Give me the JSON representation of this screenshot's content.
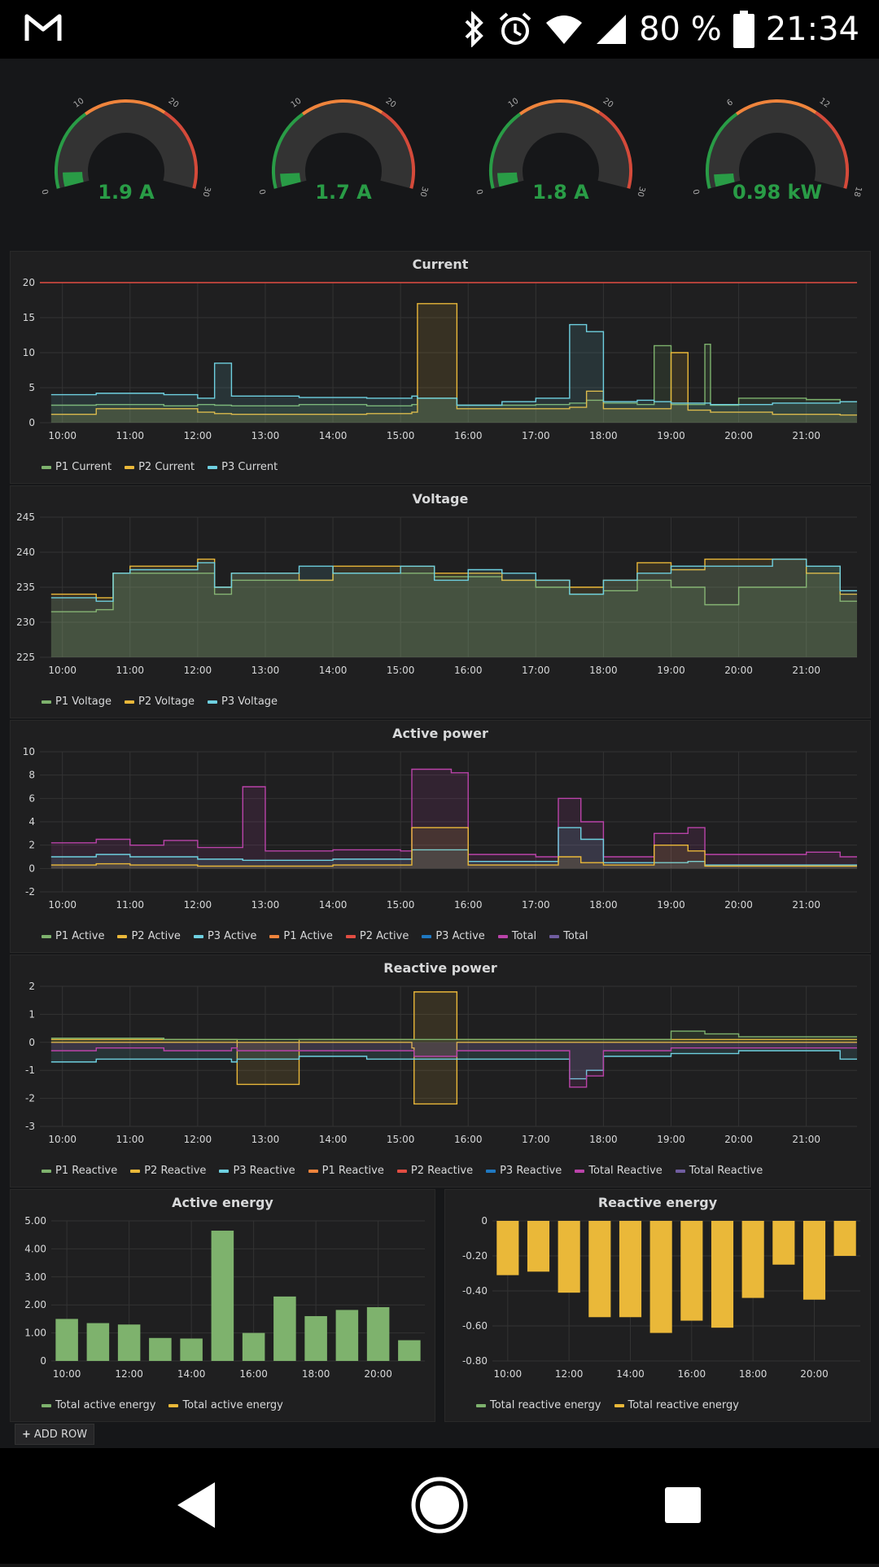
{
  "status_bar": {
    "battery_percent": "80 %",
    "time": "21:34",
    "icons": [
      "gmail-icon",
      "bluetooth-icon",
      "alarm-icon",
      "wifi-icon",
      "signal-icon",
      "battery-icon"
    ]
  },
  "gauges": [
    {
      "value": "1.9 A",
      "ticks": [
        "0",
        "10",
        "20",
        "30"
      ],
      "level": 0.063
    },
    {
      "value": "1.7 A",
      "ticks": [
        "0",
        "10",
        "20",
        "30"
      ],
      "level": 0.057
    },
    {
      "value": "1.8 A",
      "ticks": [
        "0",
        "10",
        "20",
        "30"
      ],
      "level": 0.06
    },
    {
      "value": "0.98 kW",
      "ticks": [
        "0",
        "6",
        "12",
        "18"
      ],
      "level": 0.054
    }
  ],
  "x_ticks": [
    "10:00",
    "11:00",
    "12:00",
    "13:00",
    "14:00",
    "15:00",
    "16:00",
    "17:00",
    "18:00",
    "19:00",
    "20:00",
    "21:00"
  ],
  "colors": {
    "green": "#7eb26d",
    "yellow": "#eab839",
    "cyan": "#6ed0e0",
    "orange": "#ef843c",
    "red": "#e24d42",
    "blue": "#1f78c1",
    "pink": "#ba43a9",
    "purple": "#705da0",
    "gauge_green": "#299c46"
  },
  "panels": {
    "current": {
      "title": "Current",
      "legend": [
        {
          "label": "P1 Current",
          "color": "#7eb26d"
        },
        {
          "label": "P2 Current",
          "color": "#eab839"
        },
        {
          "label": "P3 Current",
          "color": "#6ed0e0"
        }
      ],
      "chart_data": {
        "type": "line",
        "title": "Current",
        "ylim": [
          0,
          20
        ],
        "yticks": [
          "0",
          "5",
          "10",
          "15",
          "20"
        ],
        "threshold": 20,
        "x": [
          "9:50",
          "10:30",
          "11:30",
          "12:00",
          "12:15",
          "12:30",
          "13:30",
          "14:30",
          "15:10",
          "15:15",
          "15:45",
          "15:50",
          "16:30",
          "17:00",
          "17:30",
          "17:45",
          "18:00",
          "18:30",
          "18:45",
          "19:00",
          "19:15",
          "19:30",
          "19:35",
          "20:00",
          "20:30",
          "21:00",
          "21:30"
        ],
        "series": [
          {
            "name": "P1 Current",
            "values": [
              2.5,
              2.6,
              2.4,
              2.6,
              2.5,
              2.4,
              2.6,
              2.4,
              2.6,
              3.5,
              3.5,
              2.5,
              2.5,
              2.6,
              2.8,
              3.2,
              2.8,
              2.6,
              11,
              2.6,
              2.6,
              11.2,
              2.5,
              3.5,
              3.5,
              3.3,
              3.0
            ]
          },
          {
            "name": "P2 Current",
            "values": [
              1.2,
              2.0,
              2.0,
              1.5,
              1.3,
              1.2,
              1.2,
              1.3,
              1.5,
              17,
              17,
              2.0,
              2.0,
              2.0,
              2.2,
              4.5,
              2.0,
              2.0,
              2.0,
              10,
              1.8,
              1.8,
              1.5,
              1.5,
              1.2,
              1.2,
              1.1
            ]
          },
          {
            "name": "P3 Current",
            "values": [
              4.0,
              4.2,
              4.0,
              3.5,
              8.5,
              3.8,
              3.6,
              3.5,
              3.8,
              3.5,
              3.5,
              2.5,
              3.0,
              3.5,
              14,
              13,
              3.0,
              3.2,
              3.0,
              2.8,
              2.8,
              2.8,
              2.6,
              2.6,
              2.8,
              2.8,
              3.0
            ]
          }
        ]
      }
    },
    "voltage": {
      "title": "Voltage",
      "legend": [
        {
          "label": "P1 Voltage",
          "color": "#7eb26d"
        },
        {
          "label": "P2 Voltage",
          "color": "#eab839"
        },
        {
          "label": "P3 Voltage",
          "color": "#6ed0e0"
        }
      ],
      "chart_data": {
        "type": "line",
        "title": "Voltage",
        "ylim": [
          225,
          245
        ],
        "yticks": [
          "225",
          "230",
          "235",
          "240",
          "245"
        ],
        "x": [
          "9:50",
          "10:30",
          "10:45",
          "11:00",
          "12:00",
          "12:15",
          "12:30",
          "13:30",
          "14:00",
          "15:00",
          "15:30",
          "16:00",
          "16:30",
          "17:00",
          "17:30",
          "18:00",
          "18:30",
          "19:00",
          "19:30",
          "20:00",
          "20:30",
          "21:00",
          "21:30"
        ],
        "series": [
          {
            "name": "P1 Voltage",
            "values": [
              231.5,
              231.8,
              237,
              237,
              237,
              234,
              236,
              236,
              237,
              237,
              236.5,
              236.5,
              236,
              235,
              234,
              234.5,
              236,
              235,
              232.5,
              235,
              235,
              238,
              233
            ]
          },
          {
            "name": "P2 Voltage",
            "values": [
              234,
              233.5,
              237,
              238,
              239,
              235,
              237,
              236,
              238,
              238,
              237,
              237,
              236,
              236,
              235,
              236,
              238.5,
              237.5,
              239,
              239,
              239,
              237,
              234
            ]
          },
          {
            "name": "P3 Voltage",
            "values": [
              233.5,
              233,
              237,
              237.5,
              238.5,
              235,
              237,
              238,
              237,
              238,
              236,
              237.5,
              237,
              236,
              234,
              236,
              237,
              238,
              238,
              238,
              239,
              238,
              234.5
            ]
          }
        ]
      }
    },
    "active_power": {
      "title": "Active power",
      "legend": [
        {
          "label": "P1 Active",
          "color": "#7eb26d"
        },
        {
          "label": "P2 Active",
          "color": "#eab839"
        },
        {
          "label": "P3 Active",
          "color": "#6ed0e0"
        },
        {
          "label": "P1 Active",
          "color": "#ef843c"
        },
        {
          "label": "P2 Active",
          "color": "#e24d42"
        },
        {
          "label": "P3 Active",
          "color": "#1f78c1"
        },
        {
          "label": "Total",
          "color": "#ba43a9"
        },
        {
          "label": "Total",
          "color": "#705da0"
        }
      ],
      "chart_data": {
        "type": "line",
        "title": "Active power",
        "ylim": [
          -2,
          10
        ],
        "yticks": [
          "-2",
          "0",
          "2",
          "4",
          "6",
          "8",
          "10"
        ],
        "x": [
          "9:50",
          "10:30",
          "11:00",
          "11:30",
          "12:00",
          "12:40",
          "13:00",
          "14:00",
          "15:00",
          "15:10",
          "15:45",
          "16:00",
          "17:00",
          "17:20",
          "17:40",
          "18:00",
          "18:45",
          "19:15",
          "19:30",
          "20:00",
          "21:00",
          "21:30"
        ],
        "series": [
          {
            "name": "Total",
            "values": [
              2.2,
              2.5,
              2.0,
              2.4,
              1.8,
              7.0,
              1.5,
              1.6,
              1.5,
              8.5,
              8.2,
              1.2,
              1.0,
              6.0,
              4.0,
              1.0,
              3.0,
              3.5,
              1.2,
              1.2,
              1.4,
              1.0
            ]
          },
          {
            "name": "P3 Active",
            "values": [
              1.0,
              1.2,
              1.0,
              1.0,
              0.8,
              0.7,
              0.7,
              0.8,
              0.8,
              1.6,
              1.6,
              0.6,
              0.6,
              3.5,
              2.5,
              0.5,
              0.5,
              0.6,
              0.3,
              0.3,
              0.3,
              0.3
            ]
          },
          {
            "name": "P2 Active",
            "values": [
              0.3,
              0.4,
              0.3,
              0.3,
              0.2,
              0.2,
              0.2,
              0.3,
              0.3,
              3.5,
              3.5,
              0.3,
              0.3,
              1.0,
              0.5,
              0.3,
              2.0,
              1.5,
              0.2,
              0.2,
              0.2,
              0.2
            ]
          }
        ]
      }
    },
    "reactive_power": {
      "title": "Reactive power",
      "legend": [
        {
          "label": "P1 Reactive",
          "color": "#7eb26d"
        },
        {
          "label": "P2 Reactive",
          "color": "#eab839"
        },
        {
          "label": "P3 Reactive",
          "color": "#6ed0e0"
        },
        {
          "label": "P1 Reactive",
          "color": "#ef843c"
        },
        {
          "label": "P2 Reactive",
          "color": "#e24d42"
        },
        {
          "label": "P3 Reactive",
          "color": "#1f78c1"
        },
        {
          "label": "Total Reactive",
          "color": "#ba43a9"
        },
        {
          "label": "Total Reactive",
          "color": "#705da0"
        }
      ],
      "chart_data": {
        "type": "line",
        "title": "Reactive power",
        "ylim": [
          -3,
          2
        ],
        "yticks": [
          "-3",
          "-2",
          "-1",
          "0",
          "1",
          "2"
        ],
        "x": [
          "9:50",
          "10:30",
          "11:30",
          "12:30",
          "12:35",
          "13:30",
          "14:30",
          "15:10",
          "15:12",
          "15:45",
          "15:50",
          "16:30",
          "17:00",
          "17:30",
          "17:45",
          "18:00",
          "19:00",
          "19:30",
          "20:00",
          "21:00",
          "21:30"
        ],
        "series": [
          {
            "name": "P2 Reactive",
            "values": [
              0.1,
              0.1,
              0.1,
              0.1,
              -1.5,
              0.1,
              0.1,
              0.1,
              1.8,
              1.8,
              0.1,
              0.1,
              0.1,
              0.1,
              0.1,
              0.1,
              0.1,
              0.1,
              0.1,
              0.1,
              0.1
            ]
          },
          {
            "name": "P2 Reactive (neg)",
            "values": [
              0,
              0,
              0,
              0,
              0,
              0,
              0,
              -0.2,
              -2.2,
              -2.2,
              0,
              0,
              0,
              0,
              0,
              0,
              0,
              0,
              0,
              0,
              0
            ]
          },
          {
            "name": "P3 Reactive",
            "values": [
              -0.7,
              -0.6,
              -0.6,
              -0.7,
              -0.6,
              -0.5,
              -0.6,
              -0.6,
              -0.6,
              -0.6,
              -0.6,
              -0.6,
              -0.6,
              -1.3,
              -1.0,
              -0.5,
              -0.4,
              -0.4,
              -0.3,
              -0.3,
              -0.6
            ]
          },
          {
            "name": "Total Reactive",
            "values": [
              -0.3,
              -0.2,
              -0.3,
              -0.2,
              -0.3,
              -0.3,
              -0.3,
              -0.3,
              -0.5,
              -0.5,
              -0.3,
              -0.3,
              -0.3,
              -1.6,
              -1.2,
              -0.3,
              -0.2,
              -0.2,
              -0.2,
              -0.2,
              -0.2
            ]
          },
          {
            "name": "P1 Reactive",
            "values": [
              0.15,
              0.15,
              0.1,
              0.1,
              0.1,
              0.1,
              0.1,
              0.1,
              0.1,
              0.1,
              0.1,
              0.1,
              0.1,
              0.1,
              0.1,
              0.1,
              0.4,
              0.3,
              0.2,
              0.2,
              0.2
            ]
          }
        ]
      }
    },
    "active_energy": {
      "title": "Active energy",
      "legend": [
        {
          "label": "Total active energy",
          "color": "#7eb26d"
        },
        {
          "label": "Total active energy",
          "color": "#eab839"
        }
      ],
      "chart_data": {
        "type": "bar",
        "title": "Active energy",
        "ylim": [
          0,
          5
        ],
        "yticks": [
          "0",
          "1.00",
          "2.00",
          "3.00",
          "4.00",
          "5.00"
        ],
        "xticks": [
          "10:00",
          "12:00",
          "14:00",
          "16:00",
          "18:00",
          "20:00"
        ],
        "categories": [
          "10:00",
          "11:00",
          "12:00",
          "13:00",
          "14:00",
          "15:00",
          "16:00",
          "17:00",
          "18:00",
          "19:00",
          "20:00",
          "21:00"
        ],
        "values": [
          1.5,
          1.35,
          1.3,
          0.82,
          0.8,
          4.65,
          1.0,
          2.3,
          1.6,
          1.82,
          1.92,
          0.74
        ]
      }
    },
    "reactive_energy": {
      "title": "Reactive energy",
      "legend": [
        {
          "label": "Total reactive energy",
          "color": "#7eb26d"
        },
        {
          "label": "Total reactive energy",
          "color": "#eab839"
        }
      ],
      "chart_data": {
        "type": "bar",
        "title": "Reactive energy",
        "ylim": [
          -0.8,
          0
        ],
        "yticks": [
          "0",
          "-0.20",
          "-0.40",
          "-0.60",
          "-0.80"
        ],
        "xticks": [
          "10:00",
          "12:00",
          "14:00",
          "16:00",
          "18:00",
          "20:00"
        ],
        "categories": [
          "10:00",
          "11:00",
          "12:00",
          "13:00",
          "14:00",
          "15:00",
          "16:00",
          "17:00",
          "18:00",
          "19:00",
          "20:00",
          "21:00"
        ],
        "values": [
          -0.31,
          -0.29,
          -0.41,
          -0.55,
          -0.55,
          -0.64,
          -0.57,
          -0.61,
          -0.44,
          -0.25,
          -0.45,
          -0.2
        ]
      }
    }
  },
  "add_row_label": "ADD ROW",
  "nav_bar": {
    "buttons": [
      "back-button",
      "home-button",
      "recents-button"
    ]
  }
}
